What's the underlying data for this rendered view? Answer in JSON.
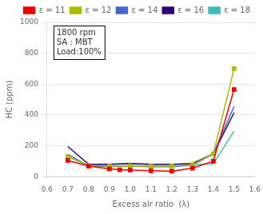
{
  "chart_data": {
    "type": "line",
    "annotation": "1800 rpm\nSA : MBT\nLoad:100%",
    "xlabel": "Excess air ratio  (λ)",
    "ylabel": "HC (ppm)",
    "xlim": [
      0.6,
      1.6
    ],
    "ylim": [
      0,
      1000
    ],
    "xticks": [
      0.6,
      0.7,
      0.8,
      0.9,
      {
        "value": 1,
        "label": "1.0"
      },
      1.1,
      1.2,
      1.3,
      1.4,
      1.5,
      1.6
    ],
    "yticks": [
      0,
      200,
      400,
      600,
      800,
      1000
    ],
    "grid": true,
    "legend": "upper right",
    "series": [
      {
        "name": "ε = 11",
        "color": "#ee0000",
        "marker": "square",
        "x": [
          0.7,
          0.8,
          0.9,
          0.95,
          1.0,
          1.1,
          1.2,
          1.3,
          1.4,
          1.5
        ],
        "values": [
          105,
          68,
          50,
          45,
          43,
          38,
          35,
          55,
          100,
          565
        ]
      },
      {
        "name": "ε = 12",
        "color": "#aabb00",
        "marker": "square",
        "x": [
          0.7,
          0.8,
          0.9,
          1.0,
          1.1,
          1.2,
          1.3,
          1.4,
          1.5
        ],
        "values": [
          130,
          72,
          68,
          70,
          68,
          68,
          78,
          148,
          700
        ]
      },
      {
        "name": "ε = 14",
        "color": "#4466cc",
        "marker": "none",
        "x": [
          0.7,
          0.8,
          0.9,
          1.0,
          1.1,
          1.2,
          1.3,
          1.4,
          1.5
        ],
        "values": [
          145,
          68,
          65,
          68,
          65,
          65,
          75,
          148,
          455
        ]
      },
      {
        "name": "ε = 16",
        "color": "#330077",
        "marker": "none",
        "x": [
          0.7,
          0.8,
          0.9,
          1.0,
          1.1,
          1.2,
          1.3,
          1.4,
          1.5
        ],
        "values": [
          195,
          80,
          80,
          85,
          80,
          80,
          85,
          148,
          415
        ]
      },
      {
        "name": "ε = 18",
        "color": "#44bbbb",
        "marker": "none",
        "x": [
          0.7,
          0.8,
          0.9,
          1.0,
          1.1,
          1.2,
          1.3,
          1.4,
          1.5
        ],
        "values": [
          128,
          72,
          80,
          82,
          80,
          80,
          78,
          82,
          295
        ]
      }
    ]
  }
}
